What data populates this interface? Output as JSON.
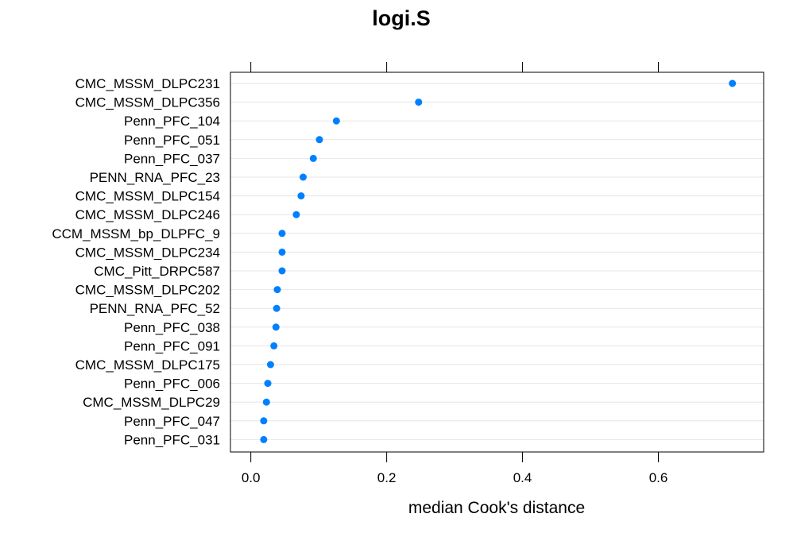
{
  "chart_data": {
    "type": "scatter",
    "subtype": "dotplot",
    "title": "logi.S",
    "xlabel": "median Cook's distance",
    "ylabel": "",
    "xlim": [
      -0.03,
      0.755
    ],
    "xticks": [
      0.0,
      0.2,
      0.4,
      0.6
    ],
    "xtick_labels": [
      "0.0",
      "0.2",
      "0.4",
      "0.6"
    ],
    "grid": "horizontal",
    "point_color": "#0080ff",
    "gridline_color": "#e6e6e6",
    "categories": [
      "CMC_MSSM_DLPC231",
      "CMC_MSSM_DLPC356",
      "Penn_PFC_104",
      "Penn_PFC_051",
      "Penn_PFC_037",
      "PENN_RNA_PFC_23",
      "CMC_MSSM_DLPC154",
      "CMC_MSSM_DLPC246",
      "CCM_MSSM_bp_DLPFC_9",
      "CMC_MSSM_DLPC234",
      "CMC_Pitt_DRPC587",
      "CMC_MSSM_DLPC202",
      "PENN_RNA_PFC_52",
      "Penn_PFC_038",
      "Penn_PFC_091",
      "CMC_MSSM_DLPC175",
      "Penn_PFC_006",
      "CMC_MSSM_DLPC29",
      "Penn_PFC_047",
      "Penn_PFC_031"
    ],
    "values": [
      0.709,
      0.247,
      0.126,
      0.101,
      0.092,
      0.077,
      0.074,
      0.067,
      0.046,
      0.046,
      0.046,
      0.039,
      0.038,
      0.037,
      0.034,
      0.029,
      0.025,
      0.023,
      0.019,
      0.019
    ]
  }
}
